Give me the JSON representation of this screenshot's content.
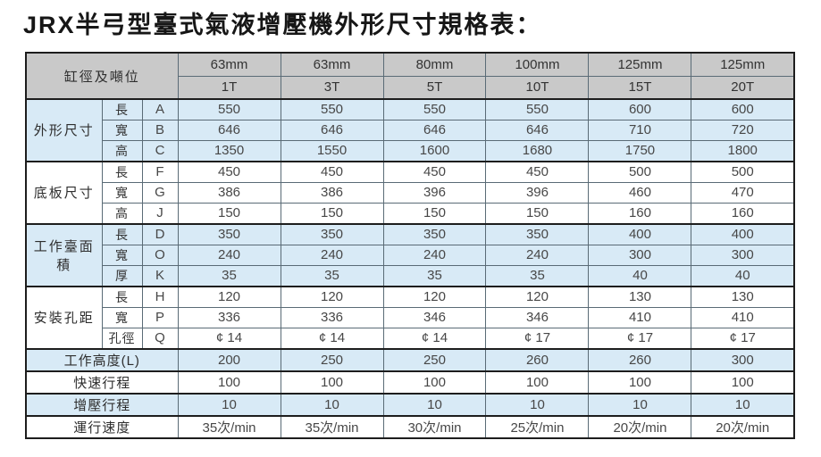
{
  "title": "JRX半弓型臺式氣液增壓機外形尺寸規格表：",
  "colors": {
    "header_bg": "#c9c9c9",
    "stripe_blue": "#d8eaf6",
    "grid_line": "#5a6b76",
    "heavy_line": "#1d1d1d",
    "text": "#474747"
  },
  "header": {
    "corner_label": "缸徑及噸位",
    "columns": [
      {
        "bore": "63mm",
        "tonnage": "1T"
      },
      {
        "bore": "63mm",
        "tonnage": "3T"
      },
      {
        "bore": "80mm",
        "tonnage": "5T"
      },
      {
        "bore": "100mm",
        "tonnage": "10T"
      },
      {
        "bore": "125mm",
        "tonnage": "15T"
      },
      {
        "bore": "125mm",
        "tonnage": "20T"
      }
    ]
  },
  "groups": [
    {
      "label": "外形尺寸",
      "rows": [
        {
          "dim": "長",
          "code": "A",
          "values": [
            "550",
            "550",
            "550",
            "550",
            "600",
            "600"
          ]
        },
        {
          "dim": "寬",
          "code": "B",
          "values": [
            "646",
            "646",
            "646",
            "646",
            "710",
            "720"
          ]
        },
        {
          "dim": "高",
          "code": "C",
          "values": [
            "1350",
            "1550",
            "1600",
            "1680",
            "1750",
            "1800"
          ]
        }
      ]
    },
    {
      "label": "底板尺寸",
      "rows": [
        {
          "dim": "長",
          "code": "F",
          "values": [
            "450",
            "450",
            "450",
            "450",
            "500",
            "500"
          ]
        },
        {
          "dim": "寬",
          "code": "G",
          "values": [
            "386",
            "386",
            "396",
            "396",
            "460",
            "470"
          ]
        },
        {
          "dim": "高",
          "code": "J",
          "values": [
            "150",
            "150",
            "150",
            "150",
            "160",
            "160"
          ]
        }
      ]
    },
    {
      "label": "工作臺面積",
      "rows": [
        {
          "dim": "長",
          "code": "D",
          "values": [
            "350",
            "350",
            "350",
            "350",
            "400",
            "400"
          ]
        },
        {
          "dim": "寬",
          "code": "O",
          "values": [
            "240",
            "240",
            "240",
            "240",
            "300",
            "300"
          ]
        },
        {
          "dim": "厚",
          "code": "K",
          "values": [
            "35",
            "35",
            "35",
            "35",
            "40",
            "40"
          ]
        }
      ]
    },
    {
      "label": "安裝孔距",
      "rows": [
        {
          "dim": "長",
          "code": "H",
          "values": [
            "120",
            "120",
            "120",
            "120",
            "130",
            "130"
          ]
        },
        {
          "dim": "寬",
          "code": "P",
          "values": [
            "336",
            "336",
            "346",
            "346",
            "410",
            "410"
          ]
        },
        {
          "dim": "孔徑",
          "code": "Q",
          "values": [
            "¢ 14",
            "¢ 14",
            "¢ 14",
            "¢ 17",
            "¢ 17",
            "¢ 17"
          ]
        }
      ]
    }
  ],
  "footer_rows": [
    {
      "label": "工作高度(L)",
      "values": [
        "200",
        "250",
        "250",
        "260",
        "260",
        "300"
      ]
    },
    {
      "label": "快速行程",
      "values": [
        "100",
        "100",
        "100",
        "100",
        "100",
        "100"
      ]
    },
    {
      "label": "增壓行程",
      "values": [
        "10",
        "10",
        "10",
        "10",
        "10",
        "10"
      ]
    },
    {
      "label": "運行速度",
      "values": [
        "35次/min",
        "35次/min",
        "30次/min",
        "25次/min",
        "20次/min",
        "20次/min"
      ]
    }
  ]
}
